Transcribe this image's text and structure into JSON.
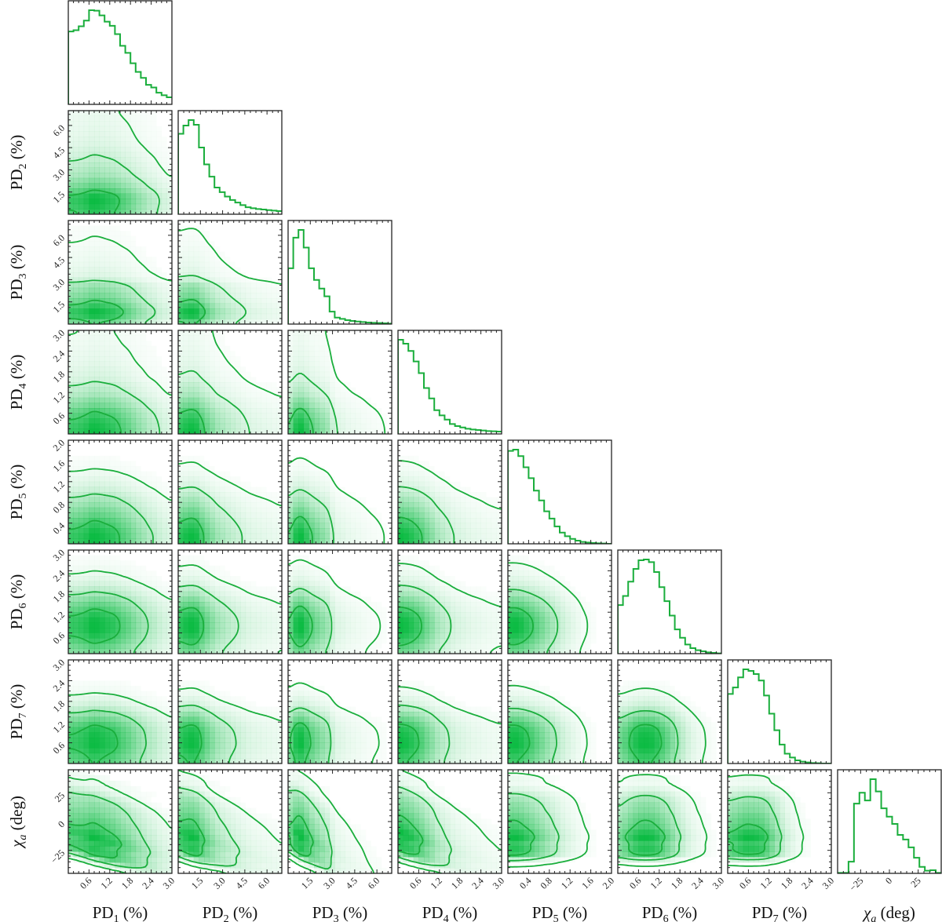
{
  "chart_data": {
    "type": "corner",
    "colors": {
      "line": "#1aae3c",
      "fill": "#00b83a",
      "frame": "#222222"
    },
    "contour_levels_sigma": [
      1,
      2,
      3
    ],
    "variables": [
      {
        "main": "PD",
        "sub": "1",
        "unit": " (%)",
        "range": [
          0,
          3
        ],
        "ticks": [
          0.6,
          1.2,
          1.8,
          2.4,
          3.0
        ],
        "tick_labels": [
          "0.6",
          "1.2",
          "1.8",
          "2.4",
          "3.0"
        ],
        "hist": [
          280,
          285,
          300,
          322,
          362,
          360,
          342,
          318,
          302,
          270,
          225,
          198,
          158,
          125,
          102,
          75,
          65,
          45,
          35,
          27
        ]
      },
      {
        "main": "PD",
        "sub": "2",
        "unit": " (%)",
        "range": [
          0,
          7
        ],
        "ticks": [
          1.5,
          3.0,
          4.5,
          6.0
        ],
        "tick_labels": [
          "1.5",
          "3.0",
          "4.5",
          "6.0"
        ],
        "hist": [
          310,
          342,
          363,
          345,
          257,
          192,
          145,
          103,
          85,
          68,
          55,
          45,
          35,
          27,
          23,
          20,
          18,
          16,
          14,
          12
        ]
      },
      {
        "main": "PD",
        "sub": "3",
        "unit": " (%)",
        "range": [
          0,
          7
        ],
        "ticks": [
          1.5,
          3.0,
          4.5,
          6.0
        ],
        "tick_labels": [
          "1.5",
          "3.0",
          "4.5",
          "6.0"
        ],
        "hist": [
          215,
          333,
          363,
          295,
          215,
          170,
          137,
          107,
          48,
          25,
          20,
          15,
          12,
          10,
          8,
          6,
          5,
          4,
          3,
          2
        ]
      },
      {
        "main": "PD",
        "sub": "4",
        "unit": " (%)",
        "range": [
          0,
          3
        ],
        "ticks": [
          0.6,
          1.2,
          1.8,
          2.4,
          3.0
        ],
        "tick_labels": [
          "0.6",
          "1.2",
          "1.8",
          "2.4",
          "3.0"
        ],
        "hist": [
          361,
          346,
          318,
          278,
          233,
          176,
          136,
          91,
          71,
          55,
          38,
          30,
          25,
          20,
          17,
          15,
          13,
          11,
          10,
          9
        ]
      },
      {
        "main": "PD",
        "sub": "5",
        "unit": " (%)",
        "range": [
          0,
          2
        ],
        "ticks": [
          0.4,
          0.8,
          1.2,
          1.6,
          2.0
        ],
        "tick_labels": [
          "0.4",
          "0.8",
          "1.2",
          "1.6",
          "2.0"
        ],
        "hist": [
          358,
          363,
          338,
          295,
          253,
          205,
          167,
          125,
          97,
          67,
          43,
          29,
          19,
          12,
          7,
          5,
          3,
          2,
          1,
          0
        ]
      },
      {
        "main": "PD",
        "sub": "6",
        "unit": " (%)",
        "range": [
          0,
          3
        ],
        "ticks": [
          0.6,
          1.2,
          1.8,
          2.4,
          3.0
        ],
        "tick_labels": [
          "0.6",
          "1.2",
          "1.8",
          "2.4",
          "3.0"
        ],
        "hist": [
          186,
          221,
          276,
          325,
          358,
          361,
          351,
          313,
          255,
          201,
          146,
          93,
          61,
          35,
          21,
          13,
          9,
          5,
          3,
          1
        ]
      },
      {
        "main": "PD",
        "sub": "7",
        "unit": " (%)",
        "range": [
          0,
          3
        ],
        "ticks": [
          0.6,
          1.2,
          1.8,
          2.4,
          3.0
        ],
        "tick_labels": [
          "0.6",
          "1.2",
          "1.8",
          "2.4",
          "3.0"
        ],
        "hist": [
          268,
          293,
          332,
          363,
          357,
          345,
          320,
          262,
          192,
          128,
          73,
          38,
          23,
          12,
          7,
          4,
          2,
          1,
          0,
          0
        ]
      },
      {
        "main": "χ",
        "sub": "a",
        "unit": " (deg)",
        "range": [
          -45,
          45
        ],
        "ticks": [
          -25,
          0,
          25
        ],
        "tick_labels": [
          "−25",
          "0",
          "25"
        ],
        "hist": [
          2,
          2,
          45,
          268,
          310,
          280,
          362,
          315,
          250,
          218,
          190,
          148,
          130,
          100,
          60,
          25,
          10,
          12,
          2
        ]
      }
    ]
  }
}
